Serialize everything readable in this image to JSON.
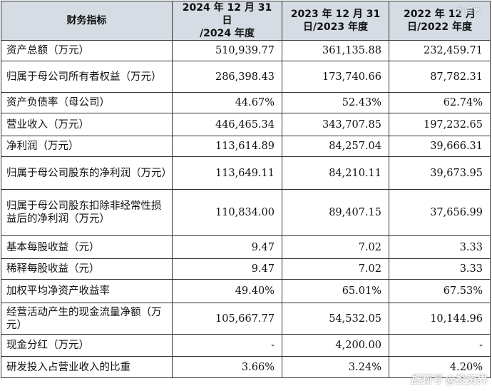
{
  "table": {
    "headers": [
      {
        "key": "metric",
        "lines": [
          "财务指标"
        ]
      },
      {
        "key": "y2024",
        "lines": [
          "2024 年 12 月 31 日",
          "/2024 年度"
        ]
      },
      {
        "key": "y2023",
        "lines": [
          "2023 年 12 月 31",
          "日/2023 年度"
        ]
      },
      {
        "key": "y2022",
        "lines": [
          "2022 年 12 月",
          "日/2022 年度"
        ]
      }
    ],
    "rows": [
      {
        "label": "资产总额（万元）",
        "values": [
          "510,939.77",
          "361,135.88",
          "232,459.71"
        ]
      },
      {
        "label": "归属于母公司所有者权益（万元）",
        "values": [
          "286,398.43",
          "173,740.66",
          "87,782.31"
        ]
      },
      {
        "label": "资产负债率（母公司）",
        "values": [
          "44.67%",
          "52.43%",
          "62.74%"
        ]
      },
      {
        "label": "营业收入（万元）",
        "values": [
          "446,465.34",
          "343,707.85",
          "197,232.65"
        ]
      },
      {
        "label": "净利润（万元）",
        "values": [
          "113,614.89",
          "84,257.04",
          "39,666.31"
        ]
      },
      {
        "label": "归属于母公司股东的净利润（万元）",
        "values": [
          "113,649.11",
          "84,210.11",
          "39,673.95"
        ]
      },
      {
        "label": "归属于母公司股东扣除非经常性损益后的净利润（万元）",
        "values": [
          "110,834.00",
          "89,407.15",
          "37,656.99"
        ]
      },
      {
        "label": "基本每股收益（元）",
        "values": [
          "9.47",
          "7.02",
          "3.33"
        ]
      },
      {
        "label": "稀释每股收益（元）",
        "values": [
          "9.47",
          "7.02",
          "3.33"
        ]
      },
      {
        "label": "加权平均净资产收益率",
        "values": [
          "49.40%",
          "65.01%",
          "67.53%"
        ]
      },
      {
        "label": "经营活动产生的现金流量净额（万元）",
        "values": [
          "105,667.77",
          "54,532.05",
          "10,144.96"
        ]
      },
      {
        "label": "现金分红（万元）",
        "values": [
          "-",
          "4,200.00",
          "-"
        ]
      },
      {
        "label": "研发投入占营业收入的比重",
        "values": [
          "3.66%",
          "3.24%",
          "4.20%"
        ]
      }
    ]
  },
  "watermarks": {
    "top": "投资界",
    "bottom_brand": "搜狐号",
    "bottom_handle": "@投资界"
  }
}
